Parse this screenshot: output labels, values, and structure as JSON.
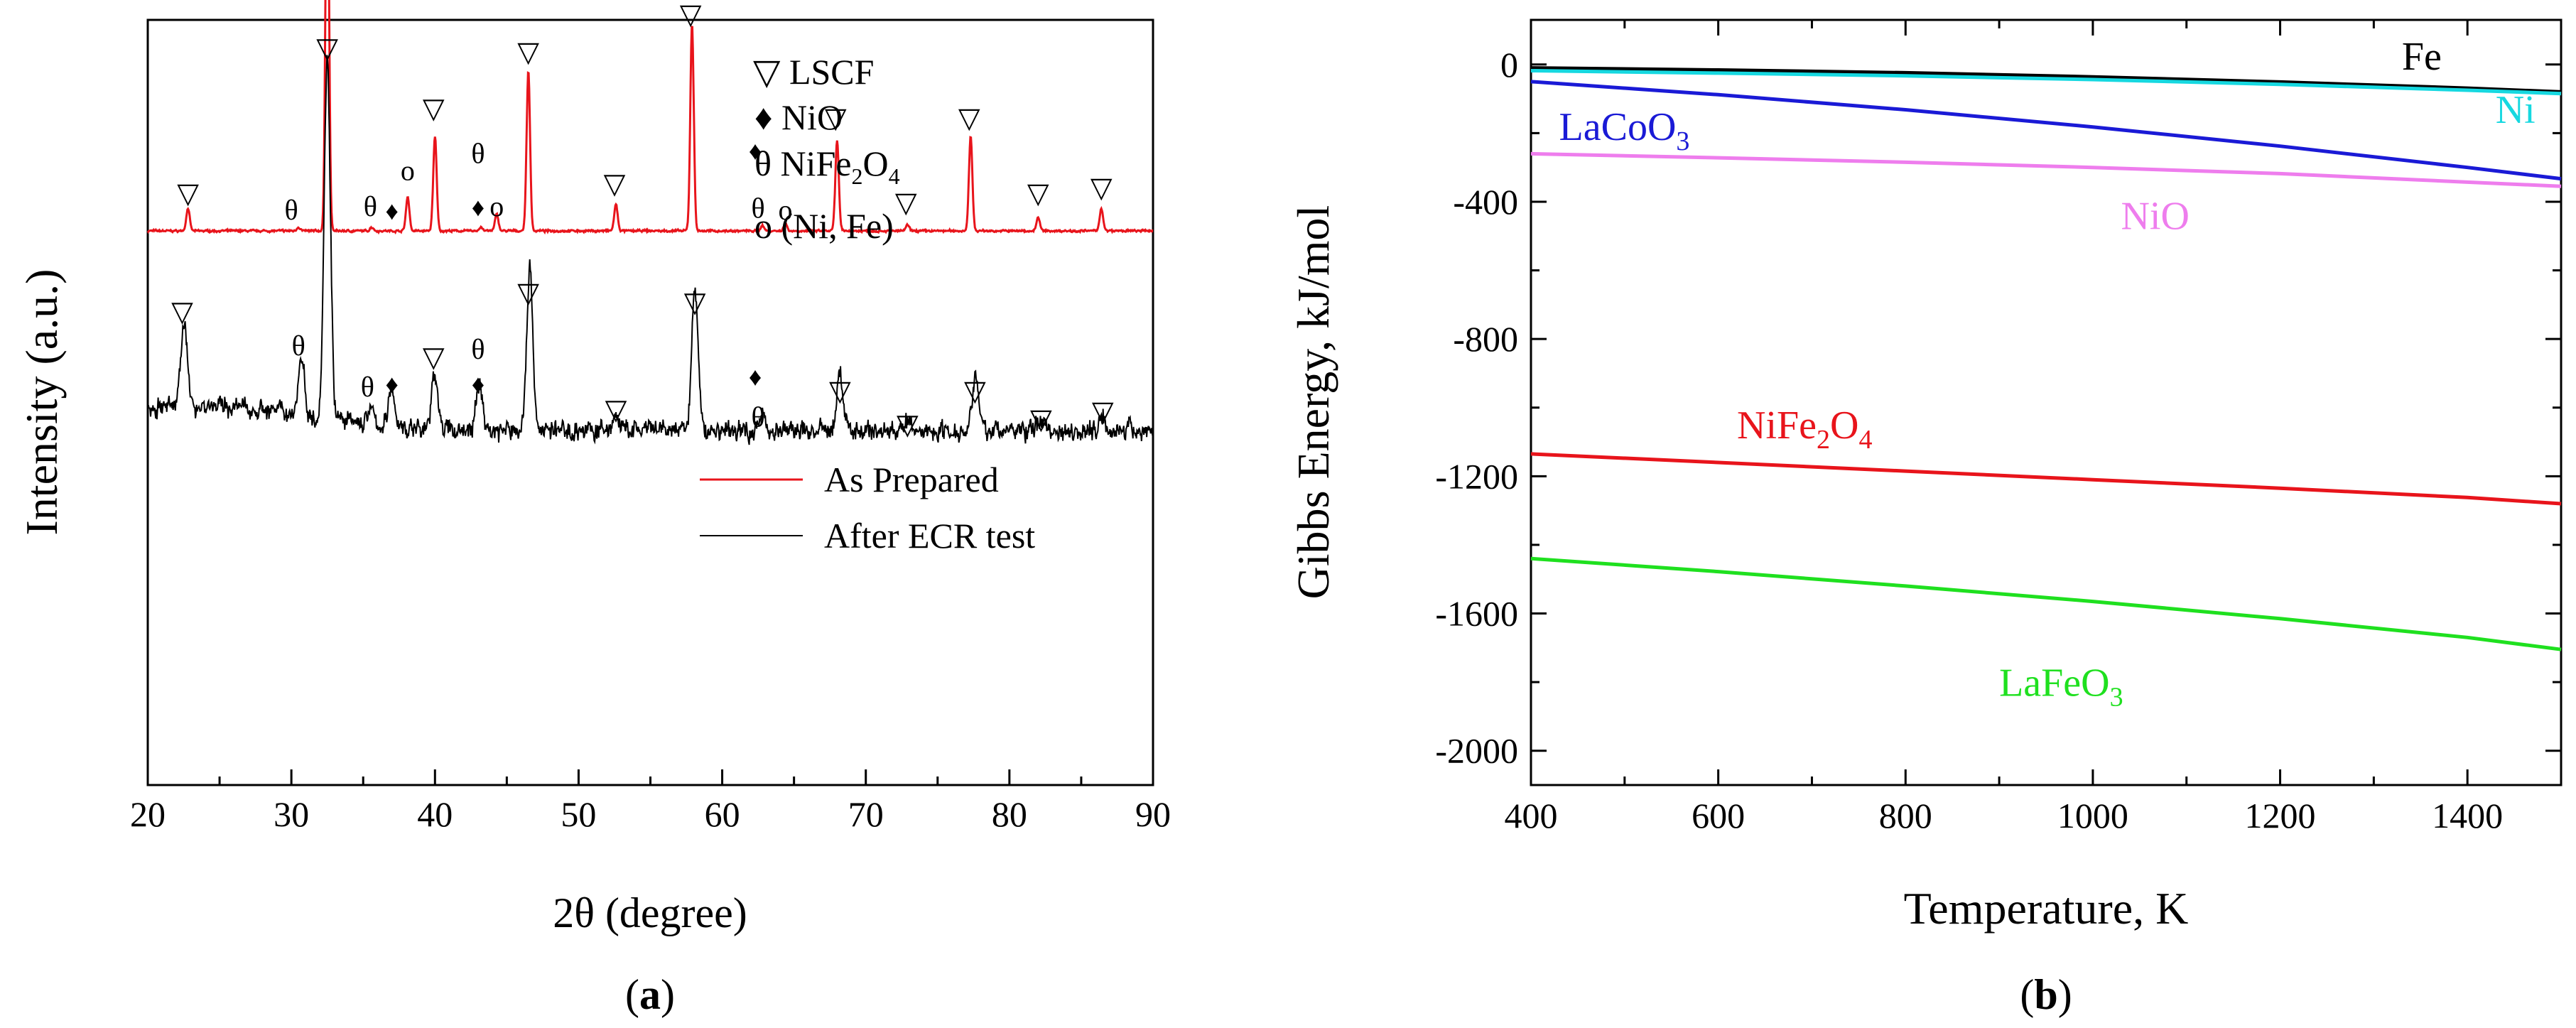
{
  "chart_data": [
    {
      "panel": "(a)",
      "type": "line",
      "xlabel": "2θ (degree)",
      "ylabel": "Intensity (a.u.)",
      "xlim": [
        20,
        90
      ],
      "xticks": [
        "20",
        "30",
        "40",
        "50",
        "60",
        "70",
        "80",
        "90"
      ],
      "yticks": [],
      "series": [
        {
          "name": "As Prepared",
          "color": "#e8141b",
          "baseline": 1.0,
          "noise": 0.006,
          "peaks": [
            [
              22.8,
              0.12
            ],
            [
              30.5,
              0.02
            ],
            [
              32.5,
              2.2
            ],
            [
              35.6,
              0.02
            ],
            [
              38.1,
              0.18
            ],
            [
              40.0,
              0.5
            ],
            [
              43.2,
              0.02
            ],
            [
              44.3,
              0.09
            ],
            [
              46.5,
              0.85
            ],
            [
              52.6,
              0.14
            ],
            [
              57.9,
              1.1
            ],
            [
              62.8,
              0.03
            ],
            [
              64.4,
              0.04
            ],
            [
              68.0,
              0.48
            ],
            [
              72.9,
              0.03
            ],
            [
              77.3,
              0.5
            ],
            [
              82.0,
              0.07
            ],
            [
              86.4,
              0.12
            ]
          ]
        },
        {
          "name": "After ECR test",
          "color": "#000000",
          "baseline": -0.06,
          "noise": 0.06,
          "peaks": [
            [
              22.5,
              0.45
            ],
            [
              30.7,
              0.3
            ],
            [
              32.5,
              1.9
            ],
            [
              35.5,
              0.08
            ],
            [
              37.0,
              0.2
            ],
            [
              40.0,
              0.3
            ],
            [
              43.1,
              0.25
            ],
            [
              46.6,
              0.85
            ],
            [
              52.6,
              0.08
            ],
            [
              58.1,
              0.75
            ],
            [
              62.8,
              0.08
            ],
            [
              68.2,
              0.3
            ],
            [
              72.9,
              0.04
            ],
            [
              77.6,
              0.3
            ],
            [
              82.2,
              0.07
            ],
            [
              86.5,
              0.08
            ]
          ]
        }
      ],
      "annotations": [
        {
          "symbol": "▽",
          "positions": [
            [
              22.8,
              1.15
            ],
            [
              32.4,
              2.3
            ],
            [
              39.9,
              1.6
            ],
            [
              46.5,
              1.9
            ],
            [
              52.5,
              1.2
            ],
            [
              57.8,
              2.1
            ],
            [
              67.9,
              1.55
            ],
            [
              72.8,
              1.1
            ],
            [
              77.2,
              1.55
            ],
            [
              82.0,
              1.15
            ],
            [
              86.4,
              1.18
            ],
            [
              22.4,
              0.52
            ],
            [
              32.5,
              1.92
            ],
            [
              39.9,
              0.28
            ],
            [
              46.5,
              0.62
            ],
            [
              52.6,
              0.0
            ],
            [
              58.1,
              0.57
            ],
            [
              68.2,
              0.1
            ],
            [
              72.9,
              -0.08
            ],
            [
              77.6,
              0.1
            ],
            [
              82.2,
              -0.05
            ],
            [
              86.5,
              -0.01
            ]
          ]
        },
        {
          "symbol": "θ",
          "positions": [
            [
              30.0,
              1.06
            ],
            [
              35.5,
              1.08
            ],
            [
              43.0,
              1.36
            ],
            [
              62.5,
              1.07
            ],
            [
              30.5,
              0.34
            ],
            [
              35.3,
              0.12
            ],
            [
              43.0,
              0.32
            ],
            [
              62.5,
              -0.04
            ]
          ]
        },
        {
          "symbol": "♦",
          "positions": [
            [
              37.0,
              1.06
            ],
            [
              43.0,
              1.08
            ],
            [
              62.3,
              1.38
            ],
            [
              37.0,
              0.14
            ],
            [
              43.0,
              0.14
            ],
            [
              62.3,
              0.18
            ]
          ]
        },
        {
          "symbol": "ο",
          "positions": [
            [
              38.1,
              1.27
            ],
            [
              44.3,
              1.08
            ],
            [
              64.4,
              1.06
            ]
          ]
        }
      ],
      "legend_text": [
        {
          "symbol": "▽",
          "text": "LSCF"
        },
        {
          "symbol": "♦",
          "text": "NiO"
        },
        {
          "symbol": "θ",
          "text": "NiFe",
          "sub1": "2",
          "mid": "O",
          "sub2": "4"
        },
        {
          "symbol": "ο",
          "text": "(Ni, Fe)"
        }
      ],
      "legend_position": "top-right"
    },
    {
      "panel": "(b)",
      "type": "line",
      "xlabel": "Temperature, K",
      "ylabel": "Gibbs Energy, kJ/mol",
      "xlim": [
        400,
        1500
      ],
      "ylim": [
        -2100,
        130
      ],
      "xticks": [
        "400",
        "600",
        "800",
        "1000",
        "1200",
        "1400"
      ],
      "yticks": [
        "0",
        "-400",
        "-800",
        "-1200",
        "-1600",
        "-2000"
      ],
      "x": [
        400,
        600,
        800,
        1000,
        1200,
        1400,
        1500
      ],
      "series": [
        {
          "name": "Fe",
          "color": "#000000",
          "values": [
            -10,
            -16,
            -24,
            -36,
            -51,
            -69,
            -80
          ]
        },
        {
          "name": "Ni",
          "color": "#16d8e0",
          "values": [
            -18,
            -25,
            -33,
            -44,
            -58,
            -75,
            -85
          ]
        },
        {
          "name": "LaCoO3",
          "color": "#1a1ad6",
          "values": [
            -50,
            -88,
            -132,
            -182,
            -238,
            -300,
            -333
          ]
        },
        {
          "name": "NiO",
          "color": "#ee7ded",
          "values": [
            -260,
            -272,
            -285,
            -300,
            -318,
            -343,
            -355
          ]
        },
        {
          "name": "NiFe2O4",
          "color": "#e8141b",
          "values": [
            -1135,
            -1160,
            -1185,
            -1210,
            -1235,
            -1262,
            -1280
          ]
        },
        {
          "name": "LaFeO3",
          "color": "#1fe01f",
          "values": [
            -1440,
            -1478,
            -1520,
            -1565,
            -1615,
            -1670,
            -1705
          ]
        }
      ],
      "series_labels": [
        {
          "text": "Fe",
          "x": 1330,
          "y": -15,
          "color": "#000000"
        },
        {
          "text": "Ni",
          "x": 1430,
          "y": -170,
          "color": "#16d8e0"
        },
        {
          "text": "LaCoO",
          "sub": "3",
          "x": 430,
          "y": -220,
          "color": "#1a1ad6"
        },
        {
          "text": "NiO",
          "x": 1030,
          "y": -480,
          "color": "#ee7ded"
        },
        {
          "text": "NiFe",
          "sub": "2",
          "mid": "O",
          "sub2": "4",
          "x": 620,
          "y": -1090,
          "color": "#e8141b"
        },
        {
          "text": "LaFeO",
          "sub": "3",
          "x": 900,
          "y": -1840,
          "color": "#1fe01f"
        }
      ]
    }
  ],
  "captions": {
    "a": "a",
    "b": "b"
  }
}
